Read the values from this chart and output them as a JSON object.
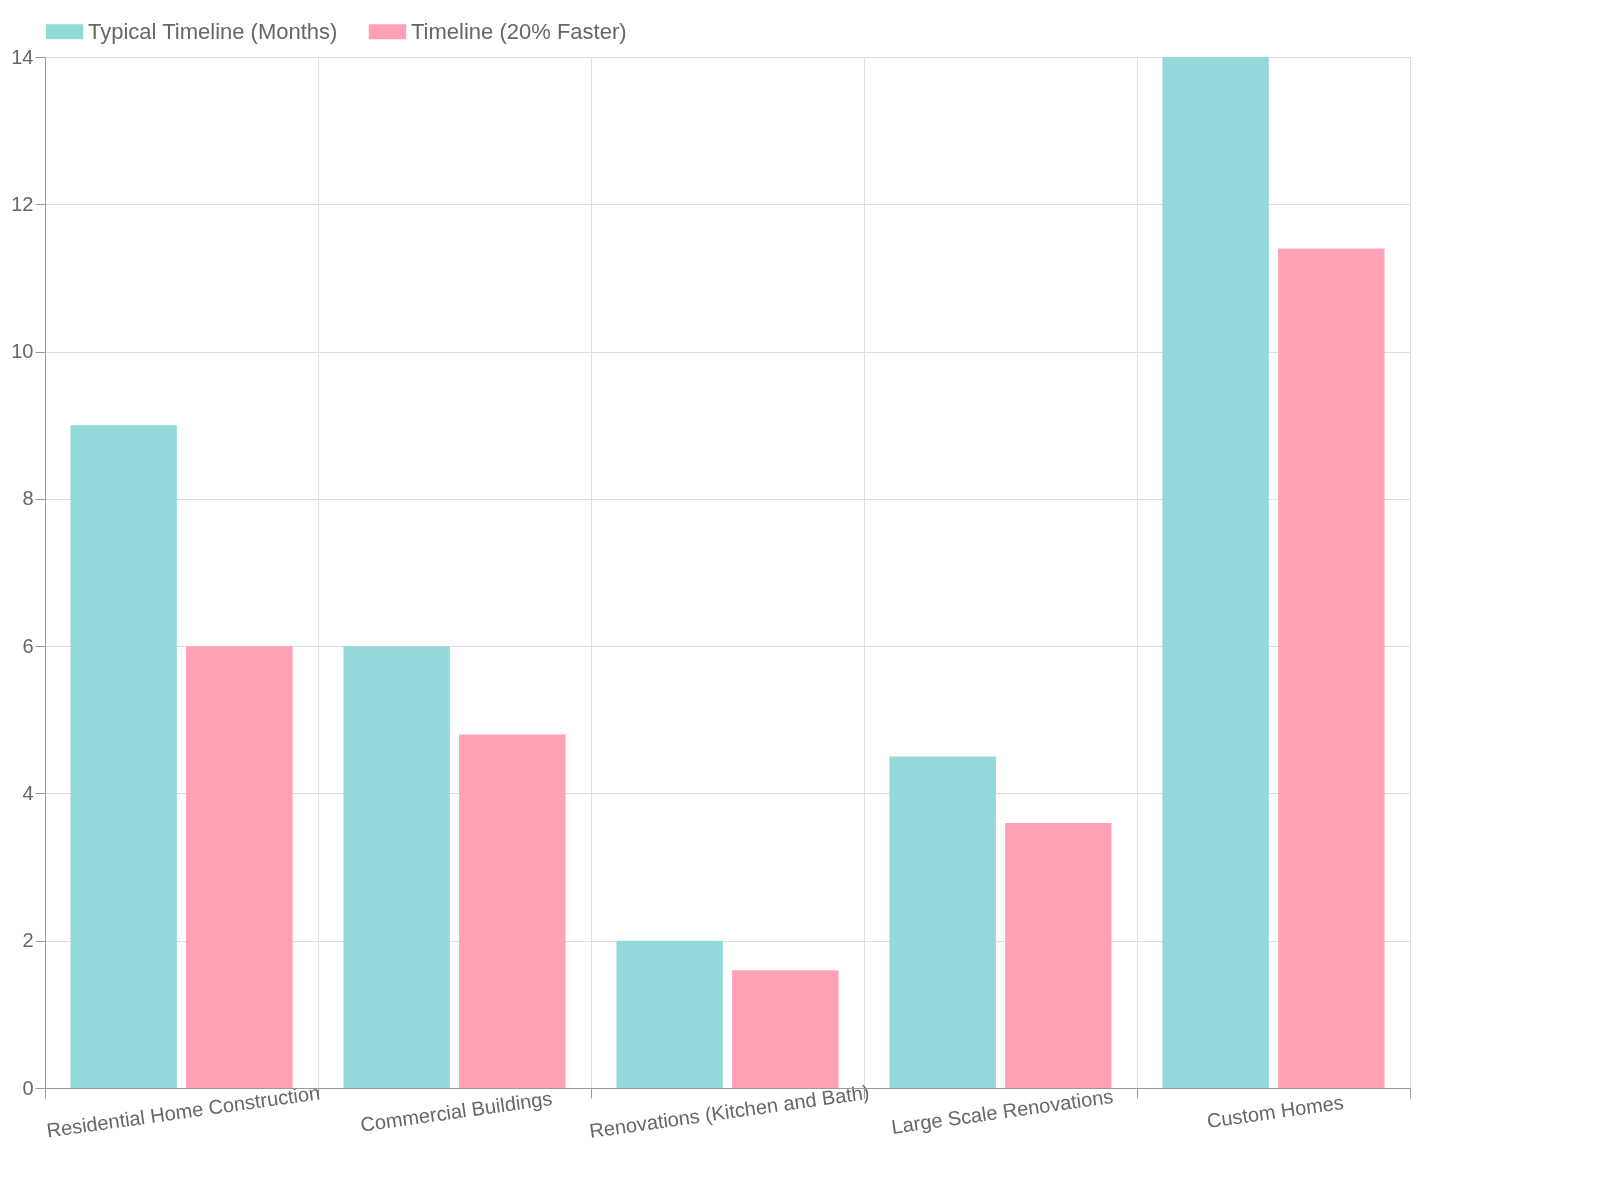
{
  "chart_data": {
    "type": "bar",
    "categories": [
      "Residential Home Construction",
      "Commercial Buildings",
      "Renovations (Kitchen and Bath)",
      "Large Scale Renovations",
      "Custom Homes"
    ],
    "series": [
      {
        "name": "Typical Timeline (Months)",
        "color": "#93d9d9",
        "values": [
          9,
          6,
          2,
          4.5,
          14
        ]
      },
      {
        "name": "Timeline (20% Faster)",
        "color": "#ffa1b5",
        "values": [
          6,
          4.8,
          1.6,
          3.6,
          11.4
        ]
      }
    ],
    "ylim": [
      0,
      14
    ],
    "yticks": [
      0,
      2,
      4,
      6,
      8,
      10,
      12,
      14
    ],
    "grid": true,
    "legend": "top"
  }
}
